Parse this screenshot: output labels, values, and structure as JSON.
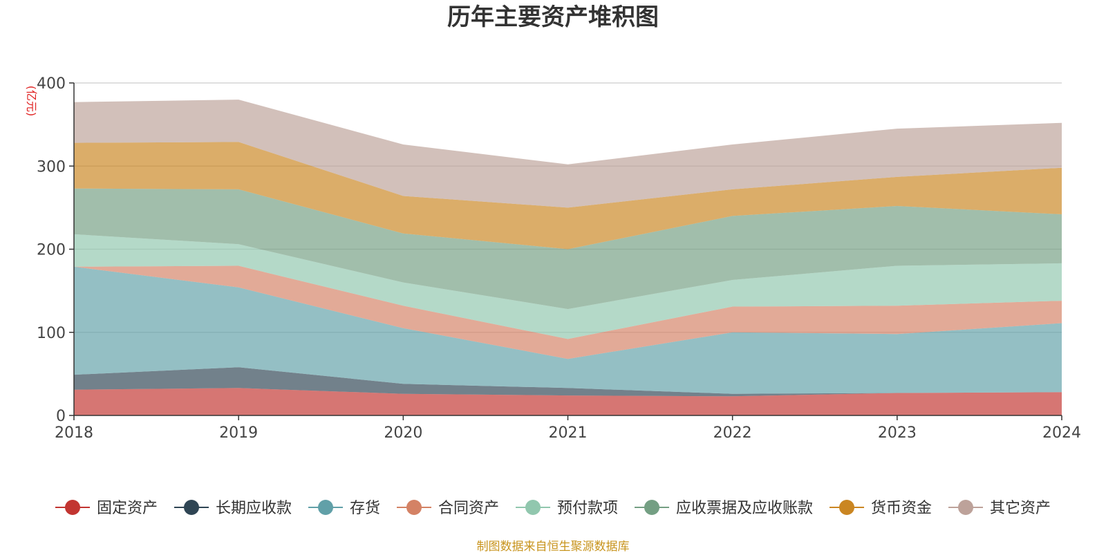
{
  "chart_data": {
    "type": "area",
    "stacked": true,
    "title": "历年主要资产堆积图",
    "y_unit": "(亿元)",
    "categories": [
      "2018",
      "2019",
      "2020",
      "2021",
      "2022",
      "2023",
      "2024"
    ],
    "y_ticks": [
      "0",
      "100",
      "200",
      "300",
      "400"
    ],
    "ylim": [
      0,
      400
    ],
    "grid": true,
    "legend_position": "bottom",
    "series": [
      {
        "name": "固定资产",
        "color": "#c23531",
        "values": [
          31,
          33,
          26,
          24,
          23,
          27,
          28
        ]
      },
      {
        "name": "长期应收款",
        "color": "#2f4554",
        "values": [
          18,
          25,
          12,
          9,
          3,
          0,
          0
        ]
      },
      {
        "name": "存货",
        "color": "#61a0a8",
        "values": [
          130,
          96,
          67,
          35,
          74,
          71,
          83
        ]
      },
      {
        "name": "合同资产",
        "color": "#d48265",
        "values": [
          0,
          26,
          27,
          24,
          31,
          34,
          27
        ]
      },
      {
        "name": "预付款项",
        "color": "#91c7ae",
        "values": [
          39,
          26,
          28,
          36,
          32,
          48,
          45
        ]
      },
      {
        "name": "应收票据及应收账款",
        "color": "#749f83",
        "values": [
          55,
          66,
          59,
          72,
          77,
          72,
          59
        ]
      },
      {
        "name": "货币资金",
        "color": "#ca8622",
        "values": [
          55,
          57,
          45,
          50,
          32,
          35,
          56
        ]
      },
      {
        "name": "其它资产",
        "color": "#bda29a",
        "values": [
          49,
          51,
          62,
          52,
          54,
          58,
          54
        ]
      }
    ]
  },
  "footer": {
    "source": "制图数据来自恒生聚源数据库"
  }
}
